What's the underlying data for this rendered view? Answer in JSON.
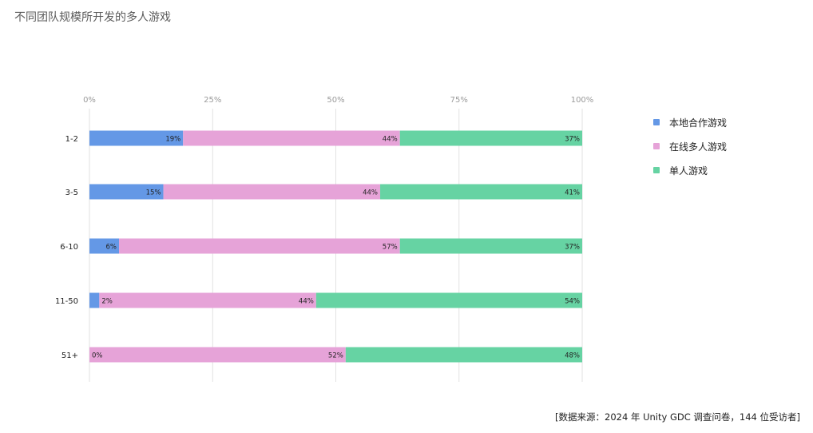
{
  "title": "不同团队规模所开发的多人游戏",
  "footer": "[数据来源：2024 年 Unity GDC 调查问卷，144 位受访者]",
  "chart_data": {
    "type": "bar",
    "orientation": "horizontal",
    "stacked": true,
    "normalized": true,
    "title": "不同团队规模所开发的多人游戏",
    "categories": [
      "1-2",
      "3-5",
      "6-10",
      "11-50",
      "51+"
    ],
    "xticks": [
      "0%",
      "25%",
      "50%",
      "75%",
      "100%"
    ],
    "xlim": [
      0,
      100
    ],
    "grid": true,
    "legend_position": "right",
    "series": [
      {
        "name": "本地合作游戏",
        "color": "#6498e6",
        "values": [
          19,
          15,
          6,
          2,
          0
        ],
        "labels": [
          "19%",
          "15%",
          "6%",
          "2%",
          "0%"
        ]
      },
      {
        "name": "在线多人游戏",
        "color": "#e6a3d8",
        "values": [
          44,
          44,
          57,
          44,
          52
        ],
        "labels": [
          "44%",
          "44%",
          "57%",
          "44%",
          "52%"
        ]
      },
      {
        "name": "单人游戏",
        "color": "#66d3a3",
        "values": [
          37,
          41,
          37,
          54,
          48
        ],
        "labels": [
          "37%",
          "41%",
          "37%",
          "54%",
          "48%"
        ]
      }
    ]
  }
}
